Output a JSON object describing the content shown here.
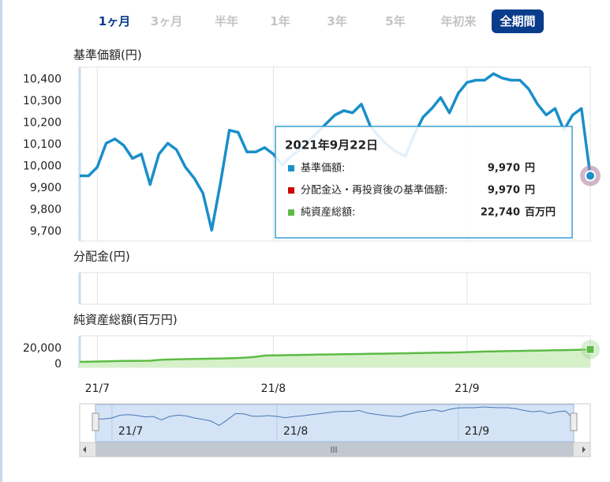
{
  "period_buttons": [
    "1ヶ月",
    "3ヶ月",
    "半年",
    "1年",
    "3年",
    "5年",
    "年初来",
    "全期間"
  ],
  "chart_data": [
    {
      "type": "line",
      "title": "基準価額(円)",
      "color": "#1a8fc9",
      "values": [
        9970,
        9970,
        10010,
        10120,
        10140,
        10110,
        10050,
        10070,
        9930,
        10070,
        10120,
        10090,
        10010,
        9960,
        9890,
        9720,
        9940,
        10180,
        10170,
        10080,
        10080,
        10100,
        10070,
        10020,
        10060,
        10090,
        10130,
        10170,
        10210,
        10250,
        10270,
        10260,
        10300,
        10200,
        10150,
        10110,
        10080,
        10060,
        10160,
        10240,
        10280,
        10330,
        10260,
        10350,
        10400,
        10410,
        10410,
        10440,
        10420,
        10410,
        10410,
        10370,
        10300,
        10250,
        10280,
        10180,
        10250,
        10280,
        9970
      ],
      "ylim": [
        9670,
        10470
      ],
      "yticks": [
        {
          "value": 9700,
          "label": "9,700"
        },
        {
          "value": 9800,
          "label": "9,800"
        },
        {
          "value": 9900,
          "label": "9,900"
        },
        {
          "value": 10000,
          "label": "10,000"
        },
        {
          "value": 10100,
          "label": "10,100"
        },
        {
          "value": 10200,
          "label": "10,200"
        },
        {
          "value": 10300,
          "label": "10,300"
        },
        {
          "value": 10400,
          "label": "10,400"
        }
      ]
    },
    {
      "type": "bar",
      "title": "分配金(円)"
    },
    {
      "type": "area",
      "title": "純資産総額(百万円)",
      "color": "#5dbb46",
      "values": [
        7000,
        7200,
        7500,
        7800,
        8000,
        8200,
        8300,
        8400,
        8500,
        9500,
        10000,
        10300,
        10500,
        10700,
        10900,
        11100,
        11300,
        11600,
        12000,
        12500,
        13500,
        15000,
        15200,
        15400,
        15600,
        15800,
        16000,
        16200,
        16400,
        16500,
        16700,
        16900,
        17000,
        17200,
        17400,
        17500,
        17700,
        17900,
        18100,
        18300,
        18500,
        18700,
        18800,
        19000,
        19400,
        19800,
        20100,
        20300,
        20500,
        20700,
        20900,
        21100,
        21300,
        21500,
        21700,
        21900,
        22100,
        22400,
        22740
      ],
      "ylim": [
        0,
        40000
      ],
      "yticks": [
        0,
        {
          "value": 20000,
          "label": "20,000"
        }
      ],
      "xlim": [
        0,
        58
      ],
      "xticks": [
        {
          "value": 2,
          "label": "21/7"
        },
        {
          "value": 22,
          "label": "21/8"
        },
        {
          "value": 44,
          "label": "21/9"
        }
      ]
    }
  ],
  "tooltip": {
    "date": "2021年9月22日",
    "rows": [
      {
        "label": "基準価額:",
        "value": "9,970",
        "unit": "円"
      },
      {
        "label": "分配金込・再投資後の基準価額:",
        "value": "9,970",
        "unit": "円"
      },
      {
        "label": "純資産総額:",
        "value": "22,740",
        "unit": "百万円"
      }
    ]
  }
}
